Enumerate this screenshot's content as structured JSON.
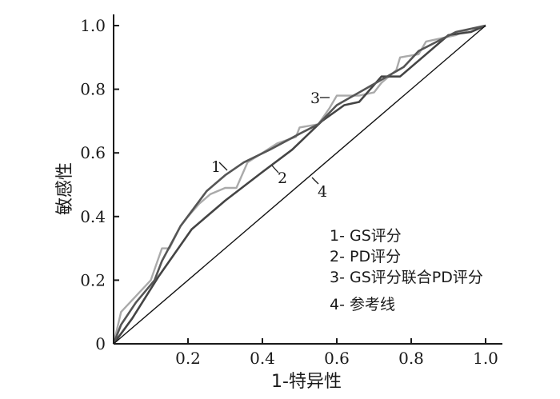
{
  "chart_data": {
    "type": "line",
    "xlabel": "1-特异性",
    "ylabel": "敏感性",
    "xlim": [
      0,
      1
    ],
    "ylim": [
      0,
      1
    ],
    "x_ticks": [
      {
        "value": 0.2,
        "label": "0.2"
      },
      {
        "value": 0.4,
        "label": "0.4"
      },
      {
        "value": 0.6,
        "label": "0.6"
      },
      {
        "value": 0.8,
        "label": "0.8"
      },
      {
        "value": 1.0,
        "label": "1.0"
      }
    ],
    "y_ticks": [
      {
        "value": 0,
        "label": "0"
      },
      {
        "value": 0.2,
        "label": "0.2"
      },
      {
        "value": 0.4,
        "label": "0.4"
      },
      {
        "value": 0.6,
        "label": "0.6"
      },
      {
        "value": 0.8,
        "label": "0.8"
      },
      {
        "value": 1.0,
        "label": "1.0"
      }
    ],
    "grid": false,
    "legend_position": "bottom-right",
    "legend": [
      {
        "label": "1- GS评分"
      },
      {
        "label": "2- PD评分"
      },
      {
        "label": "3- GS评分联合PD评分"
      },
      {
        "label": "4- 参考线"
      }
    ],
    "series": [
      {
        "tag": "1",
        "color": "#555555",
        "points": [
          [
            0,
            0
          ],
          [
            0.02,
            0.06
          ],
          [
            0.06,
            0.13
          ],
          [
            0.11,
            0.2
          ],
          [
            0.13,
            0.26
          ],
          [
            0.18,
            0.37
          ],
          [
            0.25,
            0.48
          ],
          [
            0.3,
            0.53
          ],
          [
            0.35,
            0.57
          ],
          [
            0.42,
            0.61
          ],
          [
            0.5,
            0.66
          ],
          [
            0.55,
            0.69
          ],
          [
            0.6,
            0.75
          ],
          [
            0.66,
            0.79
          ],
          [
            0.72,
            0.83
          ],
          [
            0.78,
            0.87
          ],
          [
            0.82,
            0.92
          ],
          [
            0.87,
            0.95
          ],
          [
            0.92,
            0.98
          ],
          [
            1.0,
            1.0
          ]
        ]
      },
      {
        "tag": "2",
        "color": "#444444",
        "points": [
          [
            0,
            0
          ],
          [
            0.05,
            0.08
          ],
          [
            0.12,
            0.21
          ],
          [
            0.21,
            0.36
          ],
          [
            0.3,
            0.45
          ],
          [
            0.4,
            0.54
          ],
          [
            0.48,
            0.61
          ],
          [
            0.56,
            0.7
          ],
          [
            0.62,
            0.75
          ],
          [
            0.66,
            0.76
          ],
          [
            0.72,
            0.84
          ],
          [
            0.77,
            0.84
          ],
          [
            0.85,
            0.92
          ],
          [
            0.9,
            0.97
          ],
          [
            0.96,
            0.98
          ],
          [
            1.0,
            1.0
          ]
        ]
      },
      {
        "tag": "3",
        "color": "#aaaaaa",
        "points": [
          [
            0,
            0
          ],
          [
            0.02,
            0.1
          ],
          [
            0.06,
            0.15
          ],
          [
            0.1,
            0.2
          ],
          [
            0.13,
            0.3
          ],
          [
            0.15,
            0.3
          ],
          [
            0.18,
            0.37
          ],
          [
            0.2,
            0.4
          ],
          [
            0.23,
            0.44
          ],
          [
            0.26,
            0.47
          ],
          [
            0.3,
            0.49
          ],
          [
            0.33,
            0.49
          ],
          [
            0.36,
            0.57
          ],
          [
            0.44,
            0.63
          ],
          [
            0.49,
            0.65
          ],
          [
            0.5,
            0.68
          ],
          [
            0.55,
            0.69
          ],
          [
            0.58,
            0.74
          ],
          [
            0.6,
            0.78
          ],
          [
            0.66,
            0.78
          ],
          [
            0.7,
            0.79
          ],
          [
            0.72,
            0.82
          ],
          [
            0.76,
            0.86
          ],
          [
            0.77,
            0.9
          ],
          [
            0.82,
            0.91
          ],
          [
            0.84,
            0.95
          ],
          [
            0.88,
            0.96
          ],
          [
            0.92,
            0.97
          ],
          [
            0.96,
            0.99
          ],
          [
            1.0,
            1.0
          ]
        ]
      },
      {
        "tag": "4",
        "color": "#111111",
        "points": [
          [
            0,
            0
          ],
          [
            1,
            1
          ]
        ]
      }
    ]
  }
}
